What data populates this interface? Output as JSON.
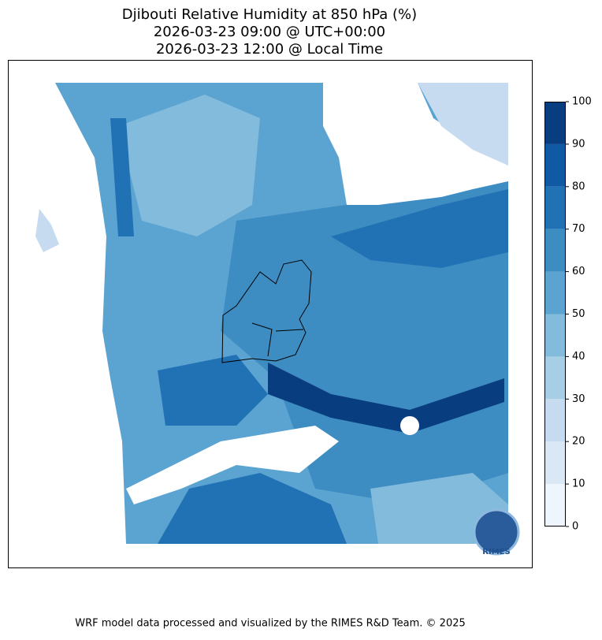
{
  "map": {
    "title": [
      "Djibouti Relative Humidity at 850 hPa (%)",
      "2026-03-23 09:00 @ UTC+00:00",
      "2026-03-23 12:00 @ Local Time"
    ],
    "colorbar": {
      "levels": [
        0,
        10,
        20,
        30,
        40,
        50,
        60,
        70,
        80,
        90,
        100
      ],
      "colors": [
        "#eef5fc",
        "#dae8f6",
        "#c6dbef",
        "#a6cee4",
        "#82bbdb",
        "#5ba3d0",
        "#3d8dc3",
        "#2171b5",
        "#0f5aa3",
        "#083d7f"
      ],
      "ticks": [
        0,
        10,
        20,
        30,
        40,
        50,
        60,
        70,
        80,
        90,
        100
      ]
    },
    "logo": "RIMES"
  },
  "footer": "WRF model data processed and visualized by the RIMES R&D Team. © 2025"
}
